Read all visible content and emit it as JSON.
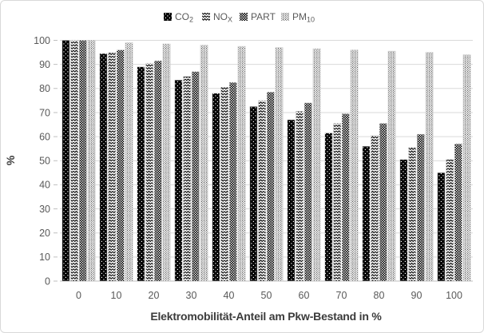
{
  "chart_data": {
    "type": "bar",
    "title": "",
    "xlabel": "Elektromobilität-Anteil am Pkw-Bestand in %",
    "ylabel": "%",
    "categories": [
      "0",
      "10",
      "20",
      "30",
      "40",
      "50",
      "60",
      "70",
      "80",
      "90",
      "100"
    ],
    "series": [
      {
        "id": "co2",
        "name": "CO2",
        "legend_main": "CO",
        "legend_sub": "2",
        "pattern": "black-with-white-dots",
        "values": [
          100,
          94.5,
          89,
          83.5,
          78,
          72.5,
          67,
          61.5,
          56,
          50.5,
          45
        ]
      },
      {
        "id": "nox",
        "name": "NOx",
        "legend_main": "NO",
        "legend_sub": "X",
        "pattern": "zigzag-chevron-waves",
        "values": [
          100,
          95,
          90.5,
          85,
          80.5,
          75,
          70.5,
          65.5,
          60.5,
          55.5,
          50.5
        ]
      },
      {
        "id": "part",
        "name": "PART",
        "legend_main": "PART",
        "legend_sub": "",
        "pattern": "dark-checkerboard-weave",
        "values": [
          100,
          96,
          91.5,
          87,
          82.5,
          78.5,
          74,
          69.5,
          65.5,
          61,
          57
        ]
      },
      {
        "id": "pm10",
        "name": "PM10",
        "legend_main": "PM",
        "legend_sub": "10",
        "pattern": "light-dot-grid",
        "values": [
          100,
          99,
          98.5,
          98,
          97.5,
          97,
          96.5,
          96,
          95.5,
          95,
          94
        ]
      }
    ],
    "ylim": [
      0,
      100
    ],
    "yticks": [
      0,
      10,
      20,
      30,
      40,
      50,
      60,
      70,
      80,
      90,
      100
    ],
    "grid": true,
    "legend_position": "top-center"
  },
  "colors": {
    "bar_fill": "#000000",
    "background": "#ffffff",
    "gridline": "#d9d9d9",
    "axis_line": "#bfbfbf",
    "tick_label": "#595959",
    "legend_label": "#595959",
    "axis_title": "#3b3b3b",
    "frame_border": "#d9d9d9",
    "bar_edge": "#c8c8c8"
  }
}
